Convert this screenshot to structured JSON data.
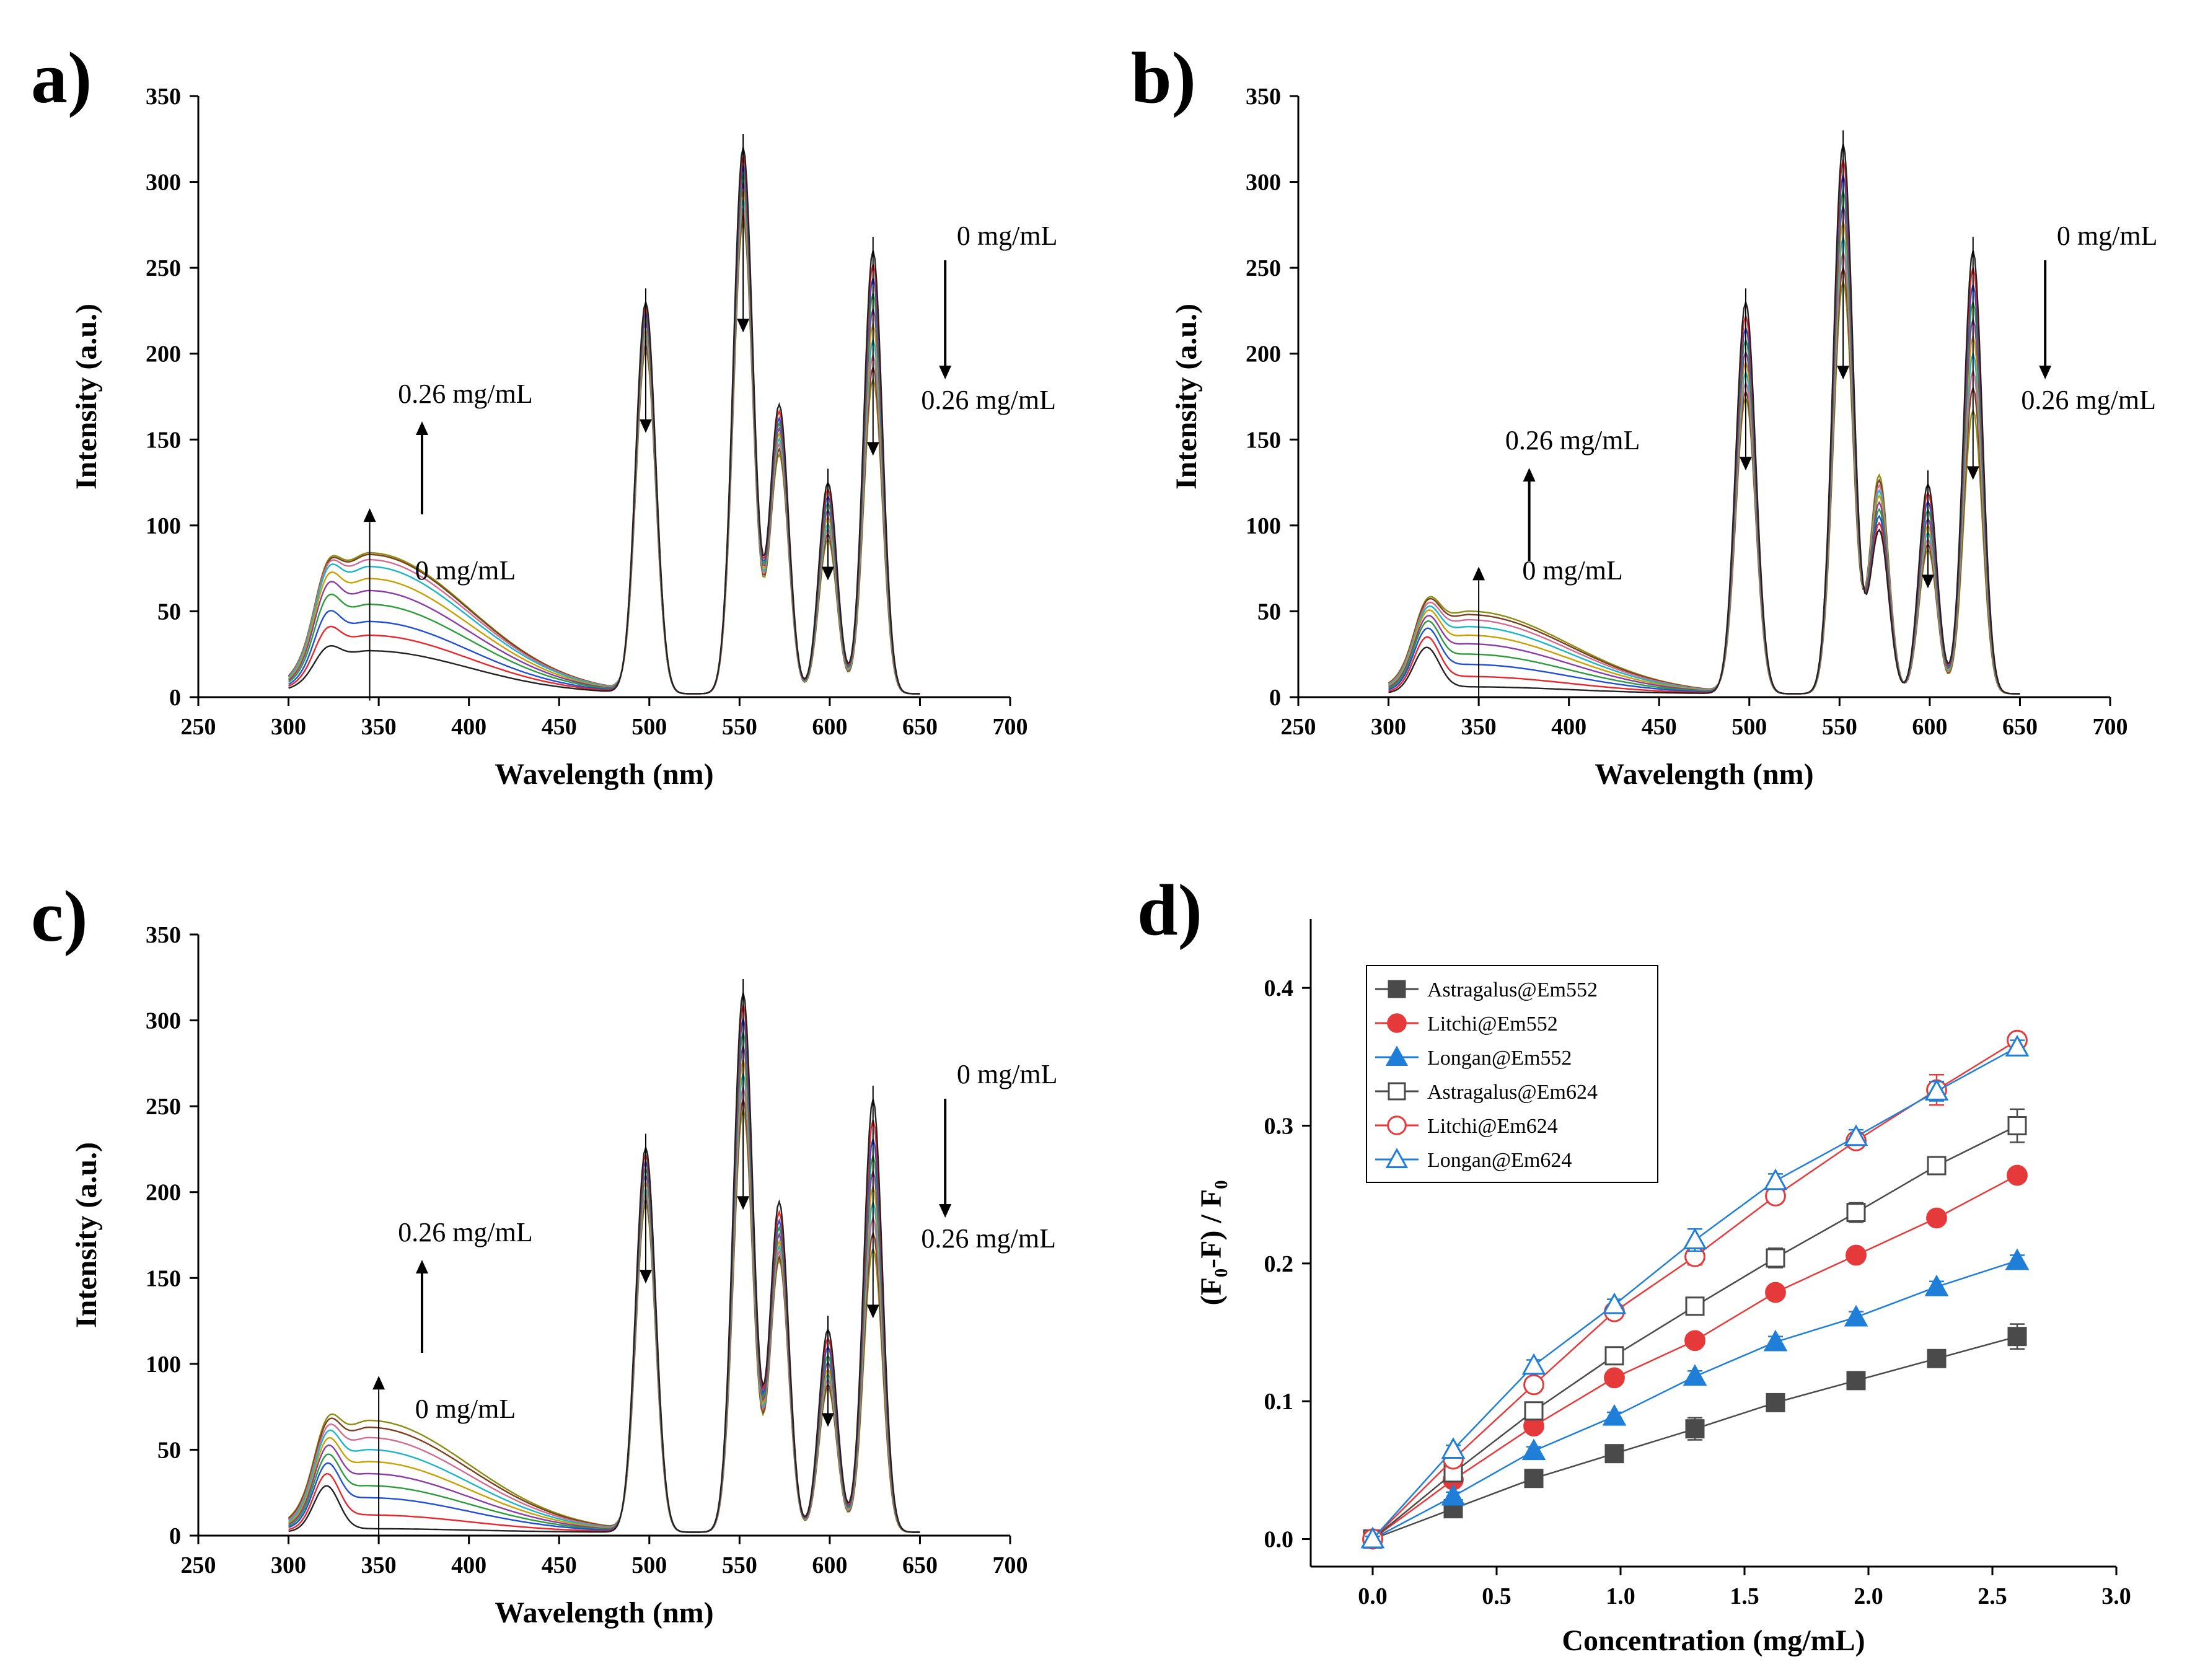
{
  "figure": {
    "panels": [
      {
        "id": "a",
        "letter": "a)",
        "annot": {
          "top_right": "0 mg/mL",
          "bottom_right": "0.26 mg/mL",
          "uv_top": "0.26 mg/mL",
          "uv_bottom": "0 mg/mL"
        }
      },
      {
        "id": "b",
        "letter": "b)",
        "annot": {
          "top_right": "0 mg/mL",
          "bottom_right": "0.26 mg/mL",
          "uv_top": "0.26 mg/mL",
          "uv_bottom": "0 mg/mL"
        }
      },
      {
        "id": "c",
        "letter": "c)",
        "annot": {
          "top_right": "0 mg/mL",
          "bottom_right": "0.26 mg/mL",
          "uv_top": "0.26 mg/mL",
          "uv_bottom": "0 mg/mL"
        }
      },
      {
        "id": "d",
        "letter": "d)"
      }
    ]
  },
  "chart_data": [
    {
      "panel": "a",
      "type": "line",
      "title": "",
      "xlabel": "Wavelength (nm)",
      "ylabel": "Intensity (a.u.)",
      "xlim": [
        250,
        700
      ],
      "ylim": [
        0,
        350
      ],
      "xticks": [
        250,
        300,
        350,
        400,
        450,
        500,
        550,
        600,
        650,
        700
      ],
      "yticks": [
        0,
        50,
        100,
        150,
        200,
        250,
        300,
        350
      ],
      "x_range": [
        300,
        650
      ],
      "n_series": 10,
      "uv_peak_max": [
        25,
        34,
        42,
        52,
        60,
        67,
        74,
        78,
        81,
        82
      ],
      "uv_shoulder_321": [
        27,
        38,
        47,
        56,
        63,
        68,
        72,
        74,
        75,
        76
      ],
      "peaks": {
        "498": [
          228,
          225,
          222,
          219,
          216,
          212,
          209,
          206,
          203,
          200
        ],
        "552": [
          318,
          313,
          308,
          303,
          298,
          293,
          288,
          283,
          279,
          275
        ],
        "572": [
          168,
          164,
          160,
          157,
          154,
          151,
          148,
          145,
          142,
          139
        ],
        "599": [
          123,
          119,
          115,
          111,
          107,
          103,
          99,
          96,
          93,
          90
        ],
        "624": [
          258,
          250,
          242,
          233,
          224,
          215,
          206,
          197,
          190,
          183
        ]
      },
      "series_colors": [
        "#222222",
        "#e8262b",
        "#1f4fd6",
        "#2a9d3a",
        "#8b3aa8",
        "#c8a000",
        "#1bb5c9",
        "#d26b8f",
        "#7b3f1e",
        "#8a8d10"
      ]
    },
    {
      "panel": "b",
      "type": "line",
      "title": "",
      "xlabel": "Wavelength (nm)",
      "ylabel": "Intensity (a.u.)",
      "xlim": [
        250,
        700
      ],
      "ylim": [
        0,
        350
      ],
      "xticks": [
        250,
        300,
        350,
        400,
        450,
        500,
        550,
        600,
        650,
        700
      ],
      "yticks": [
        0,
        50,
        100,
        150,
        200,
        250,
        300,
        350
      ],
      "x_range": [
        300,
        650
      ],
      "n_series": 10,
      "uv_peak_max": [
        4,
        10,
        17,
        23,
        29,
        34,
        39,
        43,
        46,
        48
      ],
      "uv_shoulder_321": [
        27,
        33,
        38,
        42,
        45,
        48,
        50,
        52,
        54,
        55
      ],
      "peaks": {
        "498": [
          228,
          220,
          213,
          206,
          199,
          193,
          187,
          181,
          176,
          172
        ],
        "552": [
          320,
          311,
          302,
          293,
          284,
          275,
          266,
          257,
          248,
          240
        ],
        "572": [
          95,
          99,
          103,
          107,
          111,
          115,
          118,
          121,
          124,
          127
        ],
        "599": [
          122,
          117,
          112,
          107,
          102,
          98,
          94,
          90,
          87,
          84
        ],
        "624": [
          258,
          248,
          238,
          228,
          218,
          208,
          198,
          188,
          178,
          165
        ]
      },
      "series_colors": [
        "#222222",
        "#e8262b",
        "#1f4fd6",
        "#2a9d3a",
        "#8b3aa8",
        "#c8a000",
        "#1bb5c9",
        "#d26b8f",
        "#7b3f1e",
        "#8a8d10"
      ]
    },
    {
      "panel": "c",
      "type": "line",
      "title": "",
      "xlabel": "Wavelength (nm)",
      "ylabel": "Intensity (a.u.)",
      "xlim": [
        250,
        700
      ],
      "ylim": [
        0,
        350
      ],
      "xticks": [
        250,
        300,
        350,
        400,
        450,
        500,
        550,
        600,
        650,
        700
      ],
      "yticks": [
        0,
        50,
        100,
        150,
        200,
        250,
        300,
        350
      ],
      "x_range": [
        300,
        650
      ],
      "n_series": 10,
      "uv_peak_max": [
        2,
        10,
        20,
        27,
        34,
        41,
        48,
        55,
        61,
        65
      ],
      "uv_shoulder_321": [
        27,
        34,
        40,
        45,
        50,
        54,
        58,
        61,
        64,
        66
      ],
      "peaks": {
        "498": [
          224,
          220,
          216,
          212,
          208,
          204,
          200,
          197,
          194,
          191
        ],
        "552": [
          314,
          307,
          299,
          291,
          283,
          275,
          267,
          259,
          252,
          246
        ],
        "572": [
          192,
          186,
          181,
          177,
          173,
          169,
          166,
          163,
          160,
          158
        ],
        "599": [
          118,
          113,
          108,
          103,
          99,
          95,
          92,
          89,
          86,
          84
        ],
        "624": [
          252,
          240,
          229,
          219,
          210,
          201,
          192,
          183,
          174,
          165
        ]
      },
      "series_colors": [
        "#222222",
        "#e8262b",
        "#1f4fd6",
        "#2a9d3a",
        "#8b3aa8",
        "#c8a000",
        "#1bb5c9",
        "#d26b8f",
        "#7b3f1e",
        "#8a8d10"
      ]
    },
    {
      "panel": "d",
      "type": "scatter",
      "title": "",
      "xlabel": "Concentration (mg/mL)",
      "ylabel": "(F₀-F) / F₀",
      "xlim": [
        -0.25,
        3.0
      ],
      "ylim": [
        -0.02,
        0.45
      ],
      "xticks": [
        0.0,
        0.5,
        1.0,
        1.5,
        2.0,
        2.5,
        3.0
      ],
      "yticks": [
        0.0,
        0.1,
        0.2,
        0.3,
        0.4
      ],
      "x": [
        0.0,
        0.325,
        0.65,
        0.975,
        1.3,
        1.625,
        1.95,
        2.275,
        2.6
      ],
      "legend_position": "top-left",
      "series": [
        {
          "name": "Astragalus@Em552",
          "marker": "square",
          "filled": true,
          "color": "#4a4a4a",
          "values": [
            0.0,
            0.022,
            0.044,
            0.062,
            0.08,
            0.099,
            0.115,
            0.131,
            0.147
          ],
          "errors": [
            0.002,
            0.003,
            0.003,
            0.003,
            0.008,
            0.004,
            0.004,
            0.006,
            0.009
          ]
        },
        {
          "name": "Litchi@Em552",
          "marker": "circle",
          "filled": true,
          "color": "#e63a3a",
          "values": [
            0.0,
            0.043,
            0.082,
            0.117,
            0.144,
            0.179,
            0.206,
            0.233,
            0.264
          ],
          "errors": [
            0.002,
            0.003,
            0.003,
            0.003,
            0.004,
            0.004,
            0.004,
            0.004,
            0.004
          ]
        },
        {
          "name": "Longan@Em552",
          "marker": "triangle",
          "filled": true,
          "color": "#1f7fd8",
          "values": [
            0.0,
            0.031,
            0.064,
            0.089,
            0.118,
            0.143,
            0.161,
            0.183,
            0.202
          ],
          "errors": [
            0.002,
            0.003,
            0.003,
            0.003,
            0.004,
            0.004,
            0.004,
            0.004,
            0.004
          ]
        },
        {
          "name": "Astragalus@Em624",
          "marker": "square",
          "filled": false,
          "color": "#4a4a4a",
          "values": [
            0.0,
            0.048,
            0.093,
            0.133,
            0.169,
            0.204,
            0.237,
            0.271,
            0.3
          ],
          "errors": [
            0.002,
            0.003,
            0.003,
            0.004,
            0.004,
            0.007,
            0.007,
            0.006,
            0.012
          ]
        },
        {
          "name": "Litchi@Em624",
          "marker": "circle",
          "filled": false,
          "color": "#e63a3a",
          "values": [
            0.0,
            0.058,
            0.112,
            0.165,
            0.205,
            0.249,
            0.289,
            0.326,
            0.362
          ],
          "errors": [
            0.002,
            0.003,
            0.004,
            0.004,
            0.006,
            0.005,
            0.005,
            0.011,
            0.005
          ]
        },
        {
          "name": "Longan@Em624",
          "marker": "triangle",
          "filled": false,
          "color": "#1f7fd8",
          "values": [
            0.0,
            0.065,
            0.126,
            0.17,
            0.217,
            0.26,
            0.292,
            0.325,
            0.357
          ],
          "errors": [
            0.002,
            0.003,
            0.004,
            0.004,
            0.008,
            0.005,
            0.005,
            0.007,
            0.005
          ]
        }
      ]
    }
  ]
}
